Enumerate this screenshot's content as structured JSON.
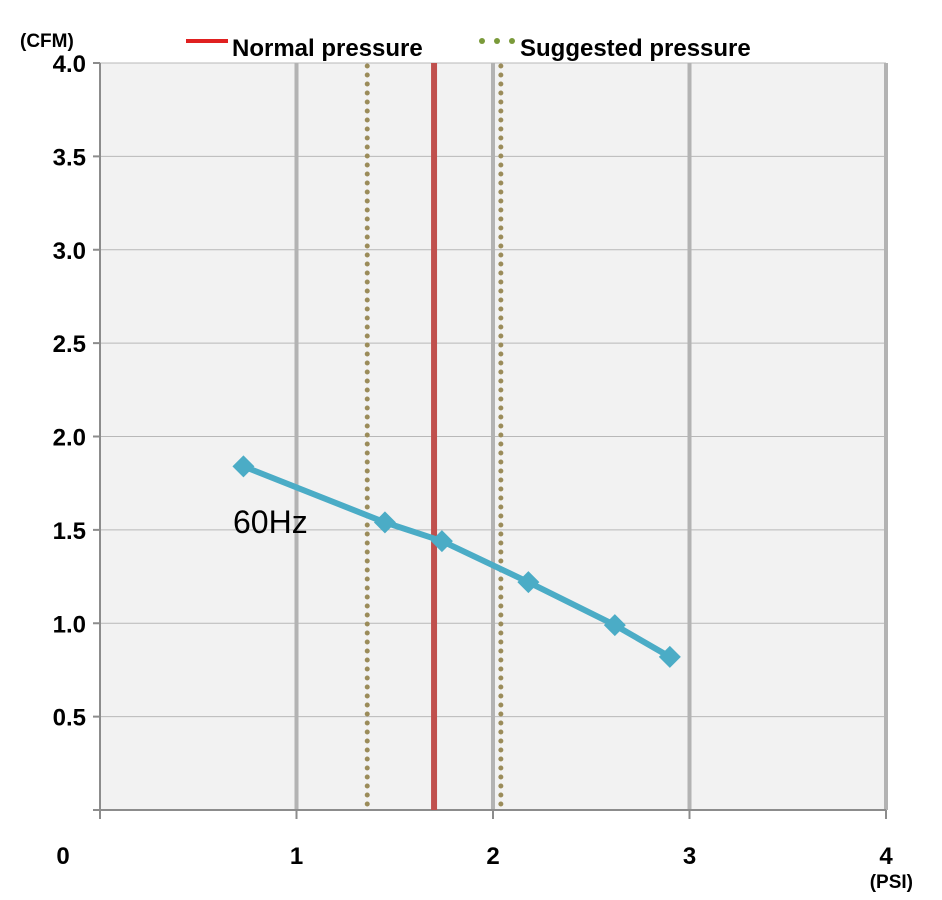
{
  "chart_data": {
    "type": "line",
    "title": "",
    "xlabel": "(PSI)",
    "ylabel": "(CFM)",
    "xlim": [
      0,
      4
    ],
    "ylim": [
      0,
      4.0
    ],
    "x_ticks": [
      0,
      1,
      2,
      3,
      4
    ],
    "x_tick_labels": [
      "0",
      "1",
      "2",
      "3",
      "4"
    ],
    "y_ticks": [
      0.5,
      1.0,
      1.5,
      2.0,
      2.5,
      3.0,
      3.5,
      4.0
    ],
    "y_tick_labels": [
      "0.5",
      "1.0",
      "1.5",
      "2.0",
      "2.5",
      "3.0",
      "3.5",
      "4.0"
    ],
    "grid": true,
    "legend_position": "top",
    "series": [
      {
        "name": "60Hz",
        "color": "#4bacc6",
        "marker": "diamond",
        "x": [
          0.73,
          1.45,
          1.74,
          2.18,
          2.62,
          2.9
        ],
        "y": [
          1.84,
          1.54,
          1.44,
          1.22,
          0.99,
          0.82
        ]
      }
    ],
    "reference_lines": [
      {
        "name": "Normal pressure",
        "style": "solid",
        "color": "#c0504d",
        "x": 1.7
      },
      {
        "name": "Suggested pressure",
        "style": "dotted",
        "color": "#9b8c5a",
        "x": 1.36
      },
      {
        "name": "Suggested pressure",
        "style": "dotted",
        "color": "#9b8c5a",
        "x": 2.04
      }
    ],
    "legend": [
      {
        "label": "Normal pressure",
        "style": "solid",
        "color": "#e02020"
      },
      {
        "label": "Suggested pressure",
        "style": "dotted",
        "color": "#7a9a3a"
      }
    ]
  }
}
